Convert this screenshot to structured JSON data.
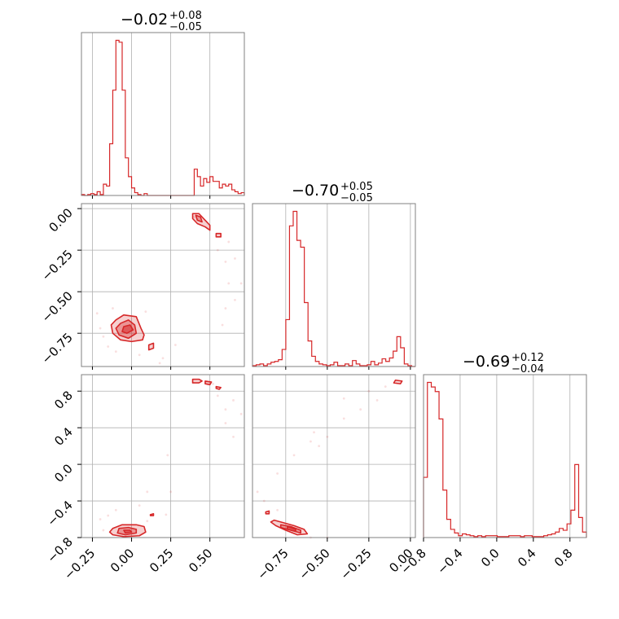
{
  "colors": {
    "accent": "#d62728",
    "fill_light": "#f4b6b9",
    "fill_mid": "#e8767b",
    "grid": "#b0b0b0",
    "frame": "#808080"
  },
  "chart_data": {
    "type": "corner",
    "parameters": [
      {
        "median": "−0.02",
        "plus": "+0.08",
        "minus": "−0.05",
        "range": [
          -0.32,
          0.72
        ],
        "ticks": [
          -0.25,
          0.0,
          0.25,
          0.5
        ],
        "tick_labels": [
          "−0.25",
          "0.00",
          "0.25",
          "0.50"
        ]
      },
      {
        "median": "−0.70",
        "plus": "+0.05",
        "minus": "−0.05",
        "range": [
          -0.95,
          0.03
        ],
        "ticks": [
          -0.75,
          -0.5,
          -0.25,
          0.0
        ],
        "tick_labels": [
          "−0.75",
          "−0.50",
          "−0.25",
          "0.00"
        ]
      },
      {
        "median": "−0.69",
        "plus": "+0.12",
        "minus": "−0.04",
        "range": [
          -0.8,
          0.98
        ],
        "ticks": [
          -0.8,
          -0.4,
          0.0,
          0.4,
          0.8
        ],
        "tick_labels": [
          "−0.8",
          "−0.4",
          "0.0",
          "0.4",
          "0.8"
        ]
      }
    ],
    "histograms": [
      {
        "param": 0,
        "counts": [
          1,
          0,
          1,
          2,
          1,
          4,
          1,
          12,
          10,
          55,
          112,
          165,
          163,
          112,
          40,
          20,
          8,
          3,
          1,
          0,
          2,
          0,
          0,
          0,
          0,
          0,
          0,
          0,
          0,
          0,
          0,
          0,
          0,
          0,
          0,
          0,
          28,
          20,
          10,
          18,
          14,
          20,
          15,
          15,
          8,
          12,
          10,
          12,
          6,
          4,
          2,
          3
        ]
      },
      {
        "param": 1,
        "counts": [
          1,
          2,
          3,
          1,
          3,
          5,
          6,
          8,
          20,
          55,
          165,
          182,
          148,
          140,
          75,
          30,
          12,
          6,
          3,
          2,
          1,
          2,
          5,
          1,
          1,
          3,
          1,
          7,
          3,
          1,
          1,
          2,
          6,
          2,
          4,
          9,
          6,
          10,
          18,
          35,
          22,
          3,
          1,
          0
        ]
      },
      {
        "param": 2,
        "counts": [
          66,
          170,
          165,
          160,
          130,
          52,
          20,
          9,
          5,
          2,
          4,
          3,
          2,
          1,
          2,
          1,
          2,
          2,
          2,
          1,
          1,
          1,
          2,
          2,
          2,
          1,
          2,
          2,
          1,
          1,
          1,
          2,
          3,
          4,
          6,
          10,
          8,
          15,
          30,
          80,
          22,
          6
        ]
      }
    ],
    "pairs": [
      {
        "x_param": 0,
        "y_param": 1,
        "modes": [
          {
            "levels": [
              [
                [
                  -0.1,
                  -0.67
                ],
                [
                  -0.05,
                  -0.64
                ],
                [
                  0.03,
                  -0.65
                ],
                [
                  0.06,
                  -0.72
                ],
                [
                  0.08,
                  -0.76
                ],
                [
                  0.07,
                  -0.79
                ],
                [
                  0.0,
                  -0.8
                ],
                [
                  -0.07,
                  -0.79
                ],
                [
                  -0.12,
                  -0.75
                ],
                [
                  -0.13,
                  -0.7
                ]
              ],
              [
                [
                  -0.07,
                  -0.69
                ],
                [
                  -0.02,
                  -0.67
                ],
                [
                  0.02,
                  -0.7
                ],
                [
                  0.03,
                  -0.75
                ],
                [
                  -0.02,
                  -0.78
                ],
                [
                  -0.08,
                  -0.76
                ],
                [
                  -0.1,
                  -0.72
                ]
              ],
              [
                [
                  -0.05,
                  -0.71
                ],
                [
                  -0.01,
                  -0.7
                ],
                [
                  0.01,
                  -0.73
                ],
                [
                  -0.03,
                  -0.75
                ],
                [
                  -0.06,
                  -0.74
                ]
              ]
            ]
          },
          {
            "levels": [
              [
                [
                  0.11,
                  -0.82
                ],
                [
                  0.14,
                  -0.81
                ],
                [
                  0.14,
                  -0.84
                ],
                [
                  0.11,
                  -0.85
                ]
              ]
            ]
          },
          {
            "levels": [
              [
                [
                  0.39,
                  -0.03
                ],
                [
                  0.43,
                  -0.03
                ],
                [
                  0.47,
                  -0.07
                ],
                [
                  0.5,
                  -0.1
                ],
                [
                  0.5,
                  -0.13
                ],
                [
                  0.47,
                  -0.11
                ],
                [
                  0.42,
                  -0.09
                ],
                [
                  0.39,
                  -0.06
                ]
              ],
              [
                [
                  0.41,
                  -0.04
                ],
                [
                  0.44,
                  -0.05
                ],
                [
                  0.45,
                  -0.08
                ],
                [
                  0.42,
                  -0.07
                ]
              ]
            ]
          },
          {
            "levels": [
              [
                [
                  0.54,
                  -0.15
                ],
                [
                  0.57,
                  -0.15
                ],
                [
                  0.57,
                  -0.17
                ],
                [
                  0.54,
                  -0.17
                ]
              ]
            ]
          }
        ],
        "points": [
          [
            -0.22,
            -0.63
          ],
          [
            -0.18,
            -0.77
          ],
          [
            -0.2,
            -0.72
          ],
          [
            -0.15,
            -0.83
          ],
          [
            -0.1,
            -0.86
          ],
          [
            0.05,
            -0.88
          ],
          [
            0.2,
            -0.9
          ],
          [
            0.18,
            -0.93
          ],
          [
            0.09,
            -0.62
          ],
          [
            -0.12,
            -0.6
          ],
          [
            0.28,
            -0.82
          ],
          [
            0.55,
            -0.25
          ],
          [
            0.6,
            -0.32
          ],
          [
            0.62,
            -0.45
          ],
          [
            0.66,
            -0.55
          ],
          [
            0.7,
            -0.45
          ],
          [
            0.58,
            -0.7
          ],
          [
            0.66,
            -0.3
          ],
          [
            0.6,
            -0.6
          ],
          [
            0.4,
            -0.05
          ],
          [
            0.62,
            -0.2
          ]
        ]
      },
      {
        "x_param": 0,
        "y_param": 2,
        "modes": [
          {
            "levels": [
              [
                [
                  -0.12,
                  -0.7
                ],
                [
                  -0.06,
                  -0.66
                ],
                [
                  0.03,
                  -0.66
                ],
                [
                  0.08,
                  -0.68
                ],
                [
                  0.09,
                  -0.74
                ],
                [
                  0.05,
                  -0.78
                ],
                [
                  -0.05,
                  -0.79
                ],
                [
                  -0.12,
                  -0.77
                ],
                [
                  -0.14,
                  -0.74
                ]
              ],
              [
                [
                  -0.08,
                  -0.7
                ],
                [
                  -0.02,
                  -0.69
                ],
                [
                  0.03,
                  -0.71
                ],
                [
                  0.03,
                  -0.75
                ],
                [
                  -0.04,
                  -0.77
                ],
                [
                  -0.09,
                  -0.75
                ]
              ],
              [
                [
                  -0.05,
                  -0.72
                ],
                [
                  -0.01,
                  -0.72
                ],
                [
                  0.0,
                  -0.74
                ],
                [
                  -0.04,
                  -0.75
                ]
              ]
            ]
          },
          {
            "levels": [
              [
                [
                  0.12,
                  -0.55
                ],
                [
                  0.14,
                  -0.54
                ],
                [
                  0.14,
                  -0.56
                ],
                [
                  0.12,
                  -0.56
                ]
              ]
            ]
          },
          {
            "levels": [
              [
                [
                  0.39,
                  0.93
                ],
                [
                  0.43,
                  0.93
                ],
                [
                  0.45,
                  0.91
                ],
                [
                  0.43,
                  0.89
                ],
                [
                  0.39,
                  0.89
                ]
              ],
              [
                [
                  0.47,
                  0.91
                ],
                [
                  0.51,
                  0.9
                ],
                [
                  0.5,
                  0.87
                ],
                [
                  0.47,
                  0.88
                ]
              ]
            ]
          },
          {
            "levels": [
              [
                [
                  0.54,
                  0.85
                ],
                [
                  0.57,
                  0.84
                ],
                [
                  0.56,
                  0.82
                ],
                [
                  0.54,
                  0.83
                ]
              ]
            ]
          }
        ],
        "points": [
          [
            -0.2,
            -0.6
          ],
          [
            -0.1,
            -0.5
          ],
          [
            0.05,
            -0.45
          ],
          [
            0.1,
            -0.3
          ],
          [
            0.22,
            -0.55
          ],
          [
            0.23,
            0.1
          ],
          [
            0.25,
            -0.3
          ],
          [
            -0.18,
            -0.72
          ],
          [
            0.6,
            0.6
          ],
          [
            0.65,
            0.7
          ],
          [
            0.7,
            0.55
          ],
          [
            0.6,
            0.45
          ],
          [
            0.55,
            0.75
          ],
          [
            0.52,
            0.88
          ],
          [
            0.65,
            0.3
          ],
          [
            0.1,
            -0.62
          ],
          [
            -0.15,
            -0.56
          ]
        ]
      },
      {
        "x_param": 1,
        "y_param": 2,
        "modes": [
          {
            "levels": [
              [
                [
                  -0.82,
                  -0.61
                ],
                [
                  -0.76,
                  -0.64
                ],
                [
                  -0.7,
                  -0.67
                ],
                [
                  -0.64,
                  -0.71
                ],
                [
                  -0.62,
                  -0.76
                ],
                [
                  -0.68,
                  -0.77
                ],
                [
                  -0.75,
                  -0.72
                ],
                [
                  -0.81,
                  -0.67
                ],
                [
                  -0.84,
                  -0.63
                ]
              ],
              [
                [
                  -0.78,
                  -0.66
                ],
                [
                  -0.72,
                  -0.68
                ],
                [
                  -0.66,
                  -0.72
                ],
                [
                  -0.66,
                  -0.75
                ],
                [
                  -0.72,
                  -0.72
                ],
                [
                  -0.78,
                  -0.69
                ]
              ],
              [
                [
                  -0.74,
                  -0.68
                ],
                [
                  -0.69,
                  -0.71
                ],
                [
                  -0.69,
                  -0.73
                ],
                [
                  -0.74,
                  -0.71
                ]
              ]
            ]
          },
          {
            "levels": [
              [
                [
                  -0.87,
                  -0.52
                ],
                [
                  -0.85,
                  -0.51
                ],
                [
                  -0.85,
                  -0.54
                ],
                [
                  -0.87,
                  -0.54
                ]
              ]
            ]
          },
          {
            "levels": [
              [
                [
                  -0.09,
                  0.92
                ],
                [
                  -0.05,
                  0.91
                ],
                [
                  -0.06,
                  0.88
                ],
                [
                  -0.1,
                  0.89
                ]
              ]
            ]
          }
        ],
        "points": [
          [
            -0.92,
            -0.3
          ],
          [
            -0.88,
            -0.4
          ],
          [
            -0.8,
            -0.5
          ],
          [
            -0.6,
            -0.8
          ],
          [
            -0.5,
            -0.8
          ],
          [
            -0.2,
            0.7
          ],
          [
            -0.3,
            0.6
          ],
          [
            -0.4,
            0.5
          ],
          [
            -0.5,
            0.3
          ],
          [
            -0.55,
            0.2
          ],
          [
            -0.7,
            0.1
          ],
          [
            -0.8,
            -0.1
          ],
          [
            -0.6,
            0.25
          ],
          [
            -0.15,
            0.85
          ],
          [
            -0.25,
            0.8
          ],
          [
            -0.58,
            0.35
          ],
          [
            -0.4,
            0.72
          ]
        ]
      }
    ]
  }
}
